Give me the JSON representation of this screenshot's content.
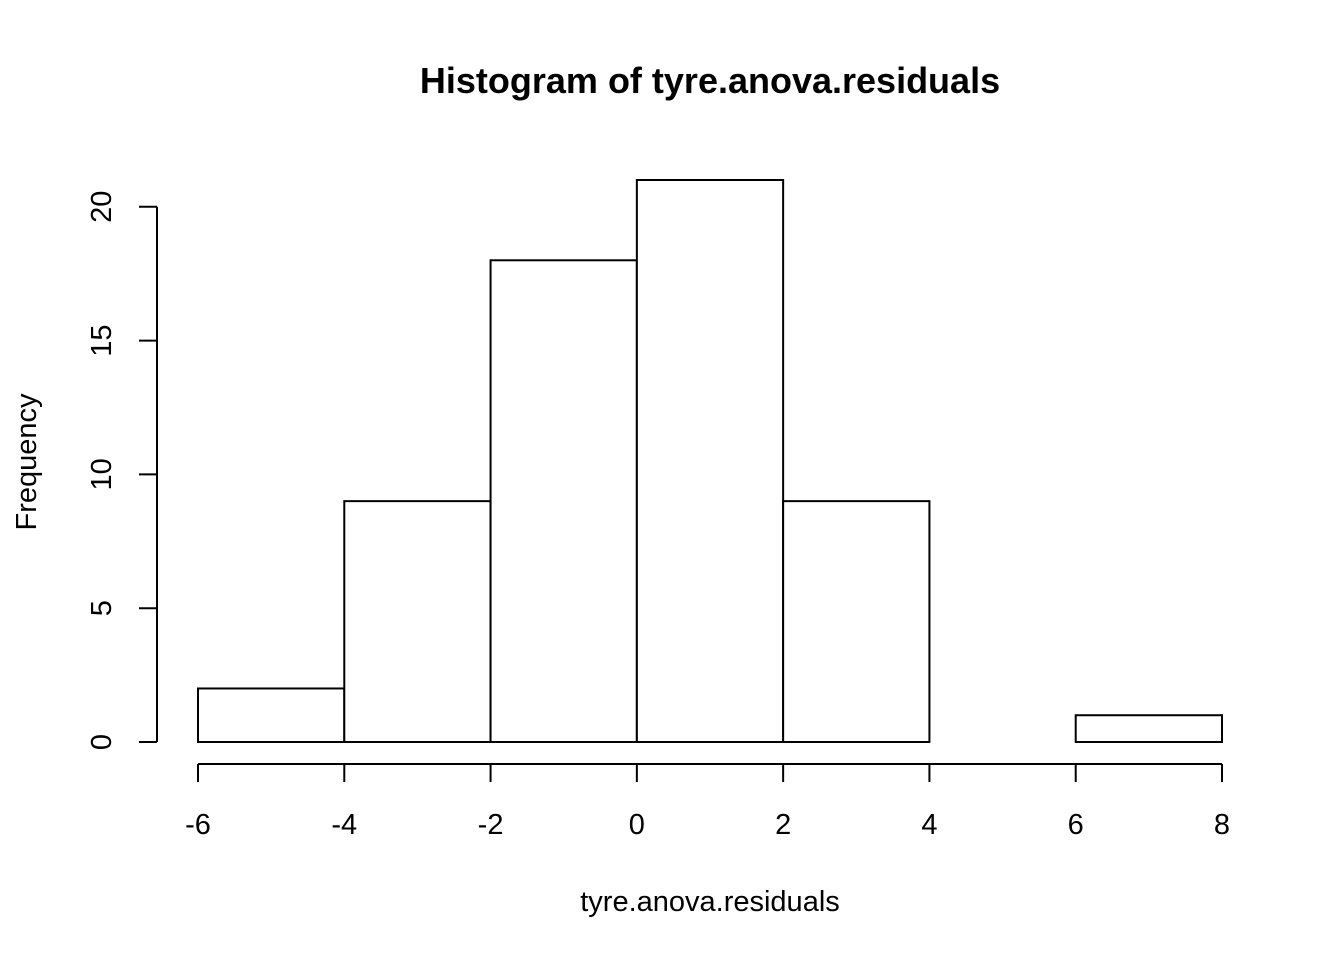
{
  "chart_data": {
    "type": "bar",
    "title": "Histogram of tyre.anova.residuals",
    "xlabel": "tyre.anova.residuals",
    "ylabel": "Frequency",
    "bins": [
      {
        "from": -6,
        "to": -4,
        "count": 2
      },
      {
        "from": -4,
        "to": -2,
        "count": 9
      },
      {
        "from": -2,
        "to": 0,
        "count": 18
      },
      {
        "from": 0,
        "to": 2,
        "count": 21
      },
      {
        "from": 2,
        "to": 4,
        "count": 9
      },
      {
        "from": 4,
        "to": 6,
        "count": 0
      },
      {
        "from": 6,
        "to": 8,
        "count": 1
      }
    ],
    "xlim": [
      -6,
      8
    ],
    "ylim": [
      0,
      21
    ],
    "x_ticks": [
      "-6",
      "-4",
      "-2",
      "0",
      "2",
      "4",
      "6",
      "8"
    ],
    "y_ticks": [
      "0",
      "5",
      "10",
      "15",
      "20"
    ],
    "bar_fill": "#ffffff",
    "bar_stroke": "#000000",
    "grid": false,
    "legend": "none"
  }
}
